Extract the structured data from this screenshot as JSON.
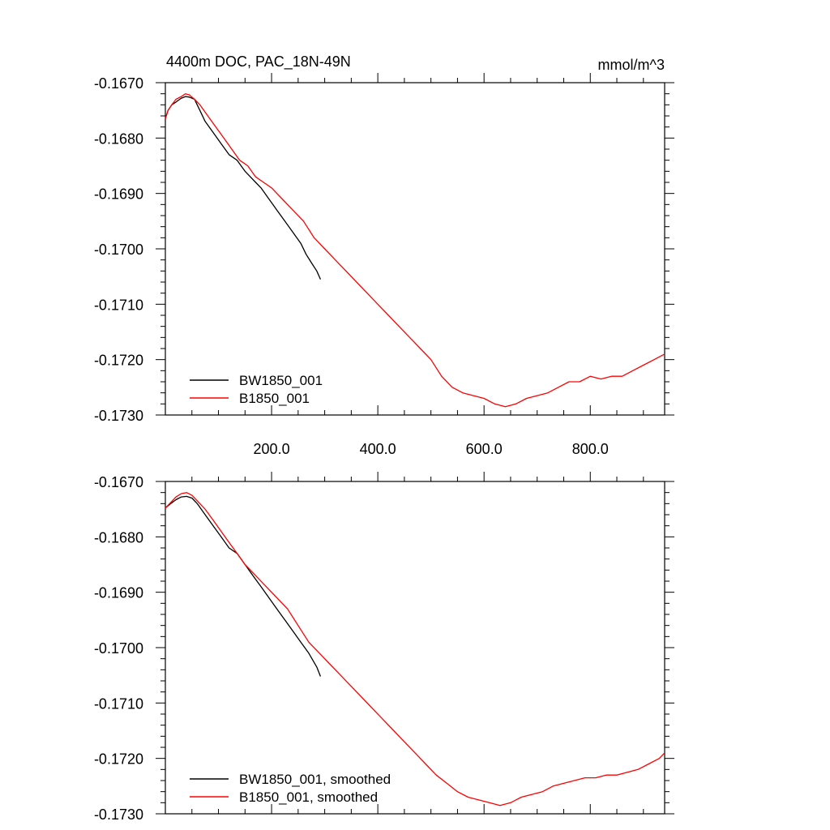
{
  "chart_data": [
    {
      "type": "line",
      "title": "4400m DOC, PAC_18N-49N",
      "units_label": "mmol/m^3",
      "xlabel": "",
      "ylabel": "",
      "xlim": [
        0,
        940
      ],
      "ylim": [
        -0.173,
        -0.167
      ],
      "xticks": [
        200,
        400,
        600,
        800
      ],
      "xtick_labels": [
        "200.0",
        "400.0",
        "600.0",
        "800.0"
      ],
      "yticks": [
        -0.167,
        -0.168,
        -0.169,
        -0.17,
        -0.171,
        -0.172,
        -0.173
      ],
      "ytick_labels": [
        "-0.1670",
        "-0.1680",
        "-0.1690",
        "-0.1700",
        "-0.1710",
        "-0.1720",
        "-0.1730"
      ],
      "legend_position": "bottom-left",
      "series": [
        {
          "name": "BW1850_001",
          "color": "#000000",
          "x": [
            0,
            5,
            12,
            20,
            30,
            38,
            45,
            55,
            65,
            75,
            90,
            105,
            120,
            135,
            150,
            160,
            170,
            180,
            195,
            210,
            225,
            240,
            255,
            265,
            275,
            285,
            292
          ],
          "y": [
            -0.16765,
            -0.1675,
            -0.1674,
            -0.16735,
            -0.16728,
            -0.16725,
            -0.16726,
            -0.1673,
            -0.1675,
            -0.1677,
            -0.1679,
            -0.1681,
            -0.1683,
            -0.1684,
            -0.1686,
            -0.1687,
            -0.1688,
            -0.1689,
            -0.1691,
            -0.1693,
            -0.1695,
            -0.1697,
            -0.1699,
            -0.1701,
            -0.17025,
            -0.1704,
            -0.17055
          ]
        },
        {
          "name": "B1850_001",
          "color": "#ff0000",
          "x": [
            0,
            5,
            12,
            20,
            30,
            38,
            45,
            55,
            65,
            80,
            95,
            110,
            125,
            140,
            155,
            170,
            185,
            200,
            220,
            240,
            260,
            280,
            300,
            320,
            340,
            360,
            380,
            400,
            420,
            440,
            460,
            480,
            500,
            520,
            540,
            560,
            580,
            600,
            620,
            640,
            660,
            680,
            700,
            720,
            740,
            760,
            780,
            800,
            820,
            840,
            860,
            880,
            900,
            920,
            940
          ],
          "y": [
            -0.16765,
            -0.1675,
            -0.1674,
            -0.1673,
            -0.16725,
            -0.1672,
            -0.16722,
            -0.1673,
            -0.1674,
            -0.1676,
            -0.1678,
            -0.168,
            -0.1682,
            -0.1684,
            -0.1685,
            -0.1687,
            -0.1688,
            -0.1689,
            -0.1691,
            -0.1693,
            -0.1695,
            -0.1698,
            -0.17,
            -0.1702,
            -0.1704,
            -0.1706,
            -0.1708,
            -0.171,
            -0.1712,
            -0.1714,
            -0.1716,
            -0.1718,
            -0.172,
            -0.1723,
            -0.1725,
            -0.1726,
            -0.17265,
            -0.1727,
            -0.1728,
            -0.17285,
            -0.1728,
            -0.1727,
            -0.17265,
            -0.1726,
            -0.1725,
            -0.1724,
            -0.1724,
            -0.1723,
            -0.17235,
            -0.1723,
            -0.1723,
            -0.1722,
            -0.1721,
            -0.172,
            -0.1719
          ]
        }
      ]
    },
    {
      "type": "line",
      "title": "",
      "xlabel": "",
      "ylabel": "",
      "xlim": [
        0,
        940
      ],
      "ylim": [
        -0.173,
        -0.167
      ],
      "xticks": [
        200,
        400,
        600,
        800
      ],
      "xtick_labels": [],
      "yticks": [
        -0.167,
        -0.168,
        -0.169,
        -0.17,
        -0.171,
        -0.172,
        -0.173
      ],
      "ytick_labels": [
        "-0.1670",
        "-0.1680",
        "-0.1690",
        "-0.1700",
        "-0.1710",
        "-0.1720",
        "-0.1730"
      ],
      "legend_position": "bottom-left",
      "series": [
        {
          "name": "BW1850_001, smoothed",
          "color": "#000000",
          "x": [
            0,
            10,
            20,
            30,
            40,
            50,
            60,
            75,
            90,
            105,
            120,
            135,
            150,
            165,
            180,
            195,
            210,
            225,
            240,
            255,
            270,
            285,
            292
          ],
          "y": [
            -0.16748,
            -0.1674,
            -0.16733,
            -0.16728,
            -0.16727,
            -0.1673,
            -0.1674,
            -0.1676,
            -0.1678,
            -0.168,
            -0.1682,
            -0.1683,
            -0.1685,
            -0.1687,
            -0.1689,
            -0.1691,
            -0.1693,
            -0.1695,
            -0.1697,
            -0.1699,
            -0.1701,
            -0.17035,
            -0.17052
          ]
        },
        {
          "name": "B1850_001, smoothed",
          "color": "#ff0000",
          "x": [
            0,
            10,
            20,
            30,
            40,
            50,
            60,
            75,
            90,
            105,
            120,
            135,
            150,
            170,
            190,
            210,
            230,
            250,
            270,
            290,
            310,
            330,
            350,
            370,
            390,
            410,
            430,
            450,
            470,
            490,
            510,
            530,
            550,
            570,
            590,
            610,
            630,
            650,
            670,
            690,
            710,
            730,
            750,
            770,
            790,
            810,
            830,
            850,
            870,
            890,
            910,
            930,
            940
          ],
          "y": [
            -0.16748,
            -0.16738,
            -0.16728,
            -0.16722,
            -0.1672,
            -0.16725,
            -0.16735,
            -0.1675,
            -0.1677,
            -0.1679,
            -0.1681,
            -0.1683,
            -0.1685,
            -0.1687,
            -0.1689,
            -0.1691,
            -0.1693,
            -0.1696,
            -0.1699,
            -0.1701,
            -0.1703,
            -0.1705,
            -0.1707,
            -0.1709,
            -0.1711,
            -0.1713,
            -0.1715,
            -0.1717,
            -0.1719,
            -0.1721,
            -0.1723,
            -0.17245,
            -0.1726,
            -0.1727,
            -0.17275,
            -0.1728,
            -0.17285,
            -0.1728,
            -0.1727,
            -0.17265,
            -0.1726,
            -0.1725,
            -0.17245,
            -0.1724,
            -0.17235,
            -0.17235,
            -0.1723,
            -0.1723,
            -0.17225,
            -0.1722,
            -0.1721,
            -0.172,
            -0.1719
          ]
        }
      ]
    }
  ]
}
